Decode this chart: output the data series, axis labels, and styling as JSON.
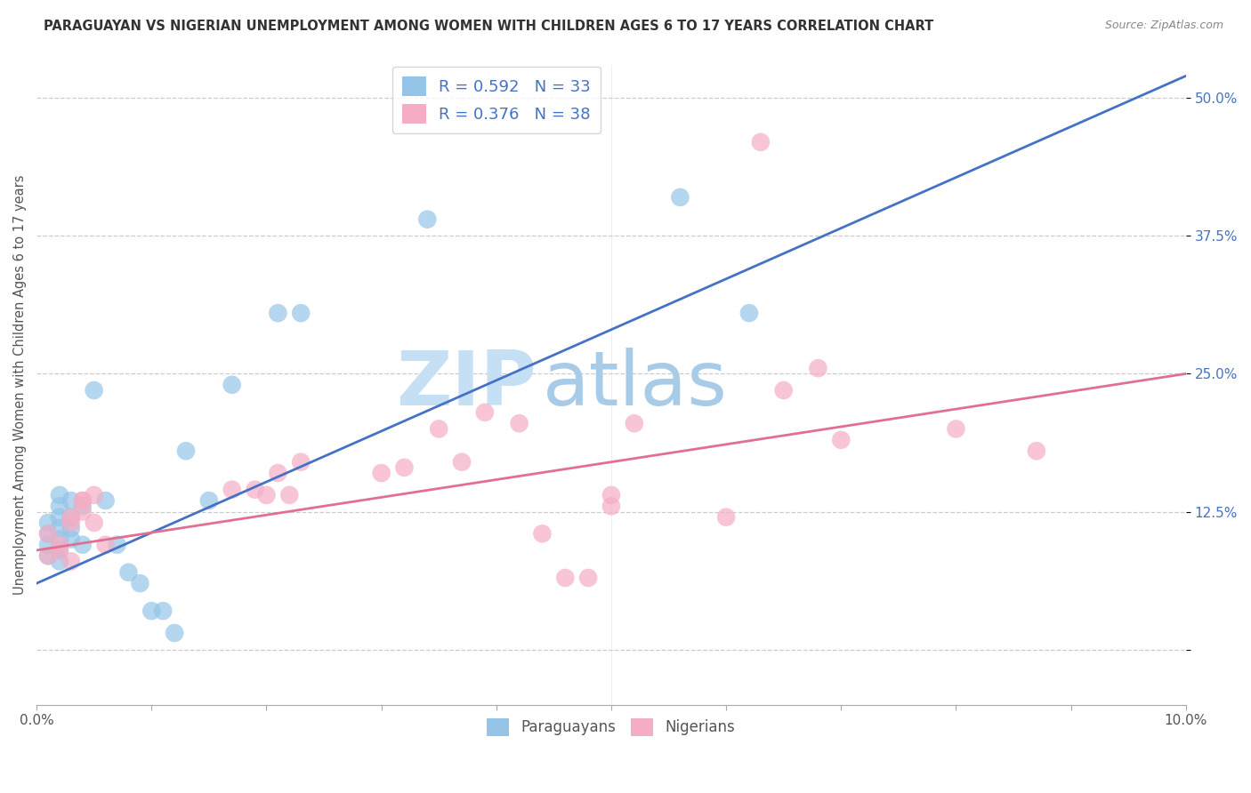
{
  "title": "PARAGUAYAN VS NIGERIAN UNEMPLOYMENT AMONG WOMEN WITH CHILDREN AGES 6 TO 17 YEARS CORRELATION CHART",
  "source": "Source: ZipAtlas.com",
  "ylabel": "Unemployment Among Women with Children Ages 6 to 17 years",
  "xlim": [
    0.0,
    0.1
  ],
  "ylim": [
    -0.05,
    0.53
  ],
  "xticks": [
    0.0,
    0.01,
    0.02,
    0.03,
    0.04,
    0.05,
    0.06,
    0.07,
    0.08,
    0.09,
    0.1
  ],
  "xticklabels": [
    "0.0%",
    "",
    "",
    "",
    "",
    "",
    "",
    "",
    "",
    "",
    "10.0%"
  ],
  "yticks": [
    0.0,
    0.125,
    0.25,
    0.375,
    0.5
  ],
  "yticklabels": [
    "",
    "12.5%",
    "25.0%",
    "37.5%",
    "50.0%"
  ],
  "blue_color": "#94c5e8",
  "pink_color": "#f5adc4",
  "blue_line_color": "#4472c4",
  "pink_line_color": "#e07090",
  "R_blue": 0.592,
  "N_blue": 33,
  "R_pink": 0.376,
  "N_pink": 38,
  "blue_scatter_x": [
    0.001,
    0.001,
    0.001,
    0.001,
    0.002,
    0.002,
    0.002,
    0.002,
    0.002,
    0.002,
    0.002,
    0.003,
    0.003,
    0.003,
    0.003,
    0.004,
    0.004,
    0.005,
    0.006,
    0.007,
    0.008,
    0.009,
    0.01,
    0.011,
    0.013,
    0.015,
    0.017,
    0.021,
    0.023,
    0.034,
    0.056,
    0.062,
    0.012
  ],
  "blue_scatter_y": [
    0.085,
    0.095,
    0.105,
    0.115,
    0.08,
    0.09,
    0.1,
    0.11,
    0.12,
    0.13,
    0.14,
    0.1,
    0.11,
    0.12,
    0.135,
    0.095,
    0.13,
    0.235,
    0.135,
    0.095,
    0.07,
    0.06,
    0.035,
    0.035,
    0.18,
    0.135,
    0.24,
    0.305,
    0.305,
    0.39,
    0.41,
    0.305,
    0.015
  ],
  "pink_scatter_x": [
    0.001,
    0.001,
    0.002,
    0.002,
    0.003,
    0.003,
    0.003,
    0.004,
    0.004,
    0.004,
    0.005,
    0.005,
    0.006,
    0.017,
    0.019,
    0.02,
    0.021,
    0.022,
    0.023,
    0.03,
    0.032,
    0.035,
    0.037,
    0.039,
    0.042,
    0.044,
    0.046,
    0.048,
    0.05,
    0.05,
    0.052,
    0.06,
    0.063,
    0.065,
    0.068,
    0.07,
    0.08,
    0.087
  ],
  "pink_scatter_y": [
    0.085,
    0.105,
    0.09,
    0.095,
    0.08,
    0.115,
    0.12,
    0.125,
    0.135,
    0.135,
    0.115,
    0.14,
    0.095,
    0.145,
    0.145,
    0.14,
    0.16,
    0.14,
    0.17,
    0.16,
    0.165,
    0.2,
    0.17,
    0.215,
    0.205,
    0.105,
    0.065,
    0.065,
    0.13,
    0.14,
    0.205,
    0.12,
    0.46,
    0.235,
    0.255,
    0.19,
    0.2,
    0.18
  ],
  "blue_trend_x": [
    0.0,
    0.1
  ],
  "blue_trend_y": [
    0.06,
    0.52
  ],
  "pink_trend_x": [
    0.0,
    0.1
  ],
  "pink_trend_y": [
    0.09,
    0.25
  ],
  "watermark_zip": "ZIP",
  "watermark_atlas": "atlas",
  "watermark_color": "#c8dff0",
  "watermark_color2": "#b0cce8",
  "background_color": "#ffffff",
  "grid_color": "#cccccc",
  "title_fontsize": 10.5,
  "source_fontsize": 9,
  "tick_fontsize": 11,
  "legend_fontsize": 13
}
